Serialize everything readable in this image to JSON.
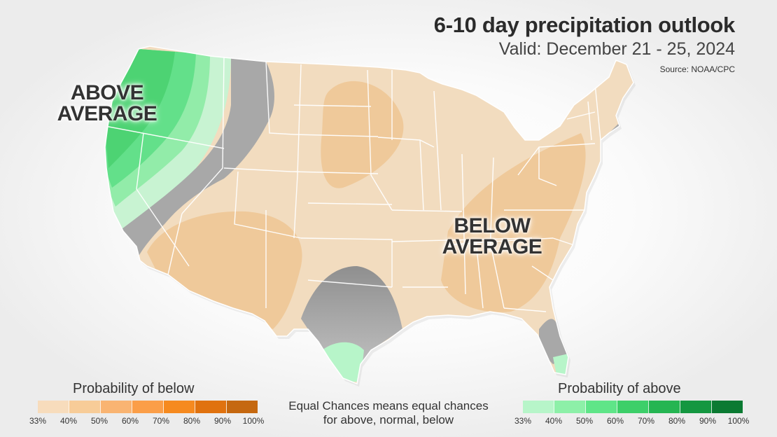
{
  "header": {
    "title": "6-10 day precipitation outlook",
    "subtitle": "Valid: December 21 - 25, 2024",
    "source": "Source: NOAA/CPC"
  },
  "map_labels": {
    "above": "ABOVE\nAVERAGE",
    "below": "BELOW\nAVERAGE"
  },
  "legend": {
    "below": {
      "title": "Probability of below",
      "colors": [
        "#f7dcbc",
        "#f7cc98",
        "#f9b472",
        "#fb9e48",
        "#f68a1f",
        "#e0720f",
        "#c56810"
      ],
      "ticks": [
        "33%",
        "40%",
        "50%",
        "60%",
        "70%",
        "80%",
        "90%",
        "100%"
      ]
    },
    "above": {
      "title": "Probability of above",
      "colors": [
        "#b7f5c9",
        "#8df0a8",
        "#5fe588",
        "#3dcf69",
        "#25b552",
        "#149740",
        "#0b7a32"
      ],
      "ticks": [
        "33%",
        "40%",
        "50%",
        "60%",
        "70%",
        "80%",
        "90%",
        "100%"
      ]
    },
    "equal_note": "Equal Chances means equal chances for above, normal, below"
  },
  "colors": {
    "base_below_33": "#f2dcbf",
    "below_40": "#efc99a",
    "equal_chances": "#a8a8a8",
    "above_33": "#c8f3d2",
    "above_40": "#92eca9",
    "above_50": "#63e08a",
    "above_60": "#4dd373",
    "state_lines": "#ffffff"
  }
}
